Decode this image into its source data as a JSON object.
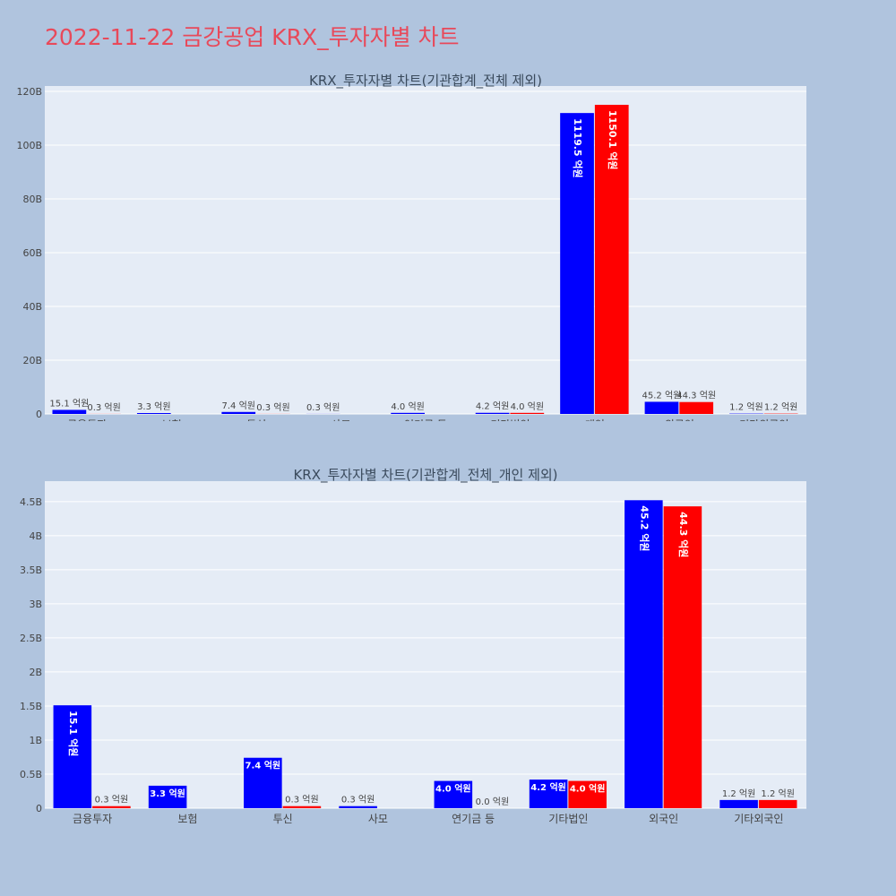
{
  "page_title": "2022-11-22 금강공업 KRX_투자자별 차트",
  "chart_data": [
    {
      "type": "bar",
      "title": "KRX_투자자별 차트(기관합계_전체 제외)",
      "categories": [
        "금융투자",
        "보험",
        "투신",
        "사모",
        "연기금 등",
        "기타법인",
        "개인",
        "외국인",
        "기타외국인"
      ],
      "series": [
        {
          "color": "#0000ff",
          "values": [
            1510000000,
            330000000,
            740000000,
            30000000,
            400000000,
            420000000,
            111950000000,
            4520000000,
            120000000
          ],
          "labels": [
            "15.1 억원",
            "3.3 억원",
            "7.4 억원",
            "0.3 억원",
            "4.0 억원",
            "4.2 억원",
            "1119.5 억원",
            "45.2 억원",
            "1.2 억원"
          ]
        },
        {
          "color": "#ff0000",
          "values": [
            30000000,
            0,
            30000000,
            0,
            0,
            400000000,
            115010000000,
            4430000000,
            120000000
          ],
          "labels": [
            "0.3 억원",
            "",
            "0.3 억원",
            "",
            "",
            "4.0 억원",
            "1150.1 억원",
            "44.3 억원",
            "1.2 억원"
          ]
        }
      ],
      "ylim": [
        0,
        122000000000
      ],
      "yticks": [
        0,
        20000000000,
        40000000000,
        60000000000,
        80000000000,
        100000000000,
        120000000000
      ],
      "ytick_labels": [
        "0",
        "20B",
        "40B",
        "60B",
        "80B",
        "100B",
        "120B"
      ],
      "grid": true
    },
    {
      "type": "bar",
      "title": "KRX_투자자별 차트(기관합계_전체_개인 제외)",
      "categories": [
        "금융투자",
        "보험",
        "투신",
        "사모",
        "연기금 등",
        "기타법인",
        "외국인",
        "기타외국인"
      ],
      "series": [
        {
          "color": "#0000ff",
          "values": [
            1510000000,
            330000000,
            740000000,
            30000000,
            400000000,
            420000000,
            4520000000,
            120000000
          ],
          "labels": [
            "15.1 억원",
            "3.3 억원",
            "7.4 억원",
            "0.3 억원",
            "4.0 억원",
            "4.2 억원",
            "45.2 억원",
            "1.2 억원"
          ]
        },
        {
          "color": "#ff0000",
          "values": [
            30000000,
            0,
            30000000,
            0,
            0,
            400000000,
            4430000000,
            120000000
          ],
          "labels": [
            "0.3 억원",
            "",
            "0.3 억원",
            "",
            "0.0 억원",
            "4.0 억원",
            "44.3 억원",
            "1.2 억원"
          ]
        }
      ],
      "ylim": [
        0,
        4800000000
      ],
      "yticks": [
        0,
        500000000,
        1000000000,
        1500000000,
        2000000000,
        2500000000,
        3000000000,
        3500000000,
        4000000000,
        4500000000
      ],
      "ytick_labels": [
        "0",
        "0.5B",
        "1B",
        "1.5B",
        "2B",
        "2.5B",
        "3B",
        "3.5B",
        "4B",
        "4.5B"
      ],
      "grid": true
    }
  ]
}
